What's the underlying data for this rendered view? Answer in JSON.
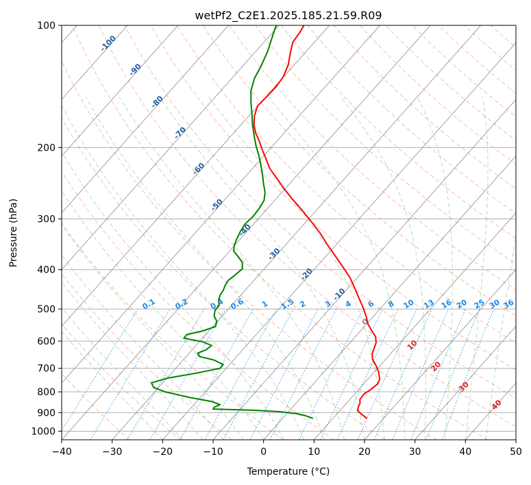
{
  "chart_data": {
    "type": "line",
    "title": "wetPf2_C2E1.2025.185.21.59.R09",
    "xlabel": "Temperature (°C)",
    "ylabel": "Pressure (hPa)",
    "xlim": [
      -40,
      50
    ],
    "ylim": [
      1050,
      100
    ],
    "y_scale": "log",
    "grid": true,
    "x_ticks": [
      -40,
      -30,
      -20,
      -10,
      0,
      10,
      20,
      30,
      40,
      50
    ],
    "y_ticks": [
      100,
      200,
      300,
      400,
      500,
      600,
      700,
      800,
      900,
      1000
    ],
    "colors": {
      "temperature": "#ff0000",
      "dewpoint": "#008000",
      "isotherm_label": "#1f5fa0",
      "mixing_ratio": "#1e88e5",
      "dry_adiabat": "#fa8060",
      "moist_adiabat": "#7cbf7c",
      "moist_label": "#d62728"
    },
    "isotherm_labels": [
      {
        "text": "-100",
        "t": -100,
        "p": 112
      },
      {
        "text": "-90",
        "t": -90,
        "p": 130
      },
      {
        "text": "-80",
        "t": -80,
        "p": 156
      },
      {
        "text": "-70",
        "t": -70,
        "p": 186
      },
      {
        "text": "-60",
        "t": -60,
        "p": 228
      },
      {
        "text": "-50",
        "t": -50,
        "p": 280
      },
      {
        "text": "-40",
        "t": -40,
        "p": 323
      },
      {
        "text": "-30",
        "t": -30,
        "p": 370
      },
      {
        "text": "-20",
        "t": -20,
        "p": 415
      },
      {
        "text": "-10",
        "t": -10,
        "p": 465
      },
      {
        "text": "0",
        "t": 0,
        "p": 543
      }
    ],
    "mixing_ratio_labels": [
      "0.1",
      "0.2",
      "0.4",
      "0.6",
      "1",
      "1.5",
      "2",
      "3",
      "4",
      "6",
      "8",
      "10",
      "13",
      "16",
      "20",
      "25",
      "30",
      "36"
    ],
    "mixing_ratio_label_x": [
      -22.5,
      -16,
      -9,
      -5,
      0.5,
      5,
      8,
      13,
      17,
      21.5,
      25.5,
      29,
      33,
      36.5,
      39.5,
      43,
      46,
      48.8
    ],
    "moist_adiabat_labels": [
      {
        "text": "10",
        "x": 29.8,
        "p": 620
      },
      {
        "text": "20",
        "x": 34.5,
        "p": 700
      },
      {
        "text": "30",
        "x": 40,
        "p": 785
      },
      {
        "text": "40",
        "x": 46.5,
        "p": 870
      }
    ],
    "series": [
      {
        "name": "temperature",
        "points": [
          [
            20.5,
            930
          ],
          [
            19.5,
            910
          ],
          [
            18.6,
            890
          ],
          [
            18.8,
            870
          ],
          [
            19.1,
            855
          ],
          [
            19.1,
            835
          ],
          [
            19.9,
            810
          ],
          [
            21.2,
            790
          ],
          [
            22.6,
            765
          ],
          [
            23.0,
            745
          ],
          [
            22.8,
            715
          ],
          [
            22.3,
            690
          ],
          [
            21.6,
            665
          ],
          [
            21.5,
            645
          ],
          [
            21.9,
            625
          ],
          [
            22.3,
            605
          ],
          [
            22.2,
            585
          ],
          [
            21.4,
            565
          ],
          [
            20.7,
            545
          ],
          [
            20.3,
            520
          ],
          [
            19.7,
            495
          ],
          [
            18.9,
            470
          ],
          [
            18.1,
            445
          ],
          [
            17.1,
            418
          ],
          [
            15.6,
            392
          ],
          [
            14.2,
            370
          ],
          [
            12.7,
            348
          ],
          [
            11.2,
            325
          ],
          [
            9.5,
            305
          ],
          [
            7.6,
            285
          ],
          [
            5.7,
            268
          ],
          [
            4.0,
            252
          ],
          [
            2.6,
            238
          ],
          [
            1.2,
            225
          ],
          [
            0.4,
            212
          ],
          [
            -0.3,
            202
          ],
          [
            -0.9,
            192
          ],
          [
            -1.6,
            184
          ],
          [
            -1.9,
            175
          ],
          [
            -1.8,
            167
          ],
          [
            -1.2,
            158
          ],
          [
            0.6,
            150
          ],
          [
            2.4,
            142
          ],
          [
            3.9,
            134
          ],
          [
            4.9,
            125
          ],
          [
            5.3,
            117
          ],
          [
            5.8,
            110
          ],
          [
            7.2,
            104
          ],
          [
            8.0,
            100
          ]
        ]
      },
      {
        "name": "dewpoint",
        "points": [
          [
            9.8,
            930
          ],
          [
            8.2,
            915
          ],
          [
            6.5,
            905
          ],
          [
            3.0,
            895
          ],
          [
            -2.0,
            888
          ],
          [
            -10.0,
            882
          ],
          [
            -9.8,
            873
          ],
          [
            -8.6,
            860
          ],
          [
            -10.3,
            845
          ],
          [
            -14.8,
            825
          ],
          [
            -19.5,
            800
          ],
          [
            -21.8,
            780
          ],
          [
            -22.2,
            760
          ],
          [
            -19.0,
            740
          ],
          [
            -13.5,
            720
          ],
          [
            -8.6,
            700
          ],
          [
            -8.0,
            685
          ],
          [
            -9.8,
            668
          ],
          [
            -12.6,
            655
          ],
          [
            -13.1,
            643
          ],
          [
            -11.4,
            630
          ],
          [
            -10.3,
            615
          ],
          [
            -12.1,
            602
          ],
          [
            -15.8,
            590
          ],
          [
            -15.2,
            578
          ],
          [
            -12.0,
            566
          ],
          [
            -9.5,
            552
          ],
          [
            -9.3,
            535
          ],
          [
            -9.8,
            520
          ],
          [
            -9.6,
            503
          ],
          [
            -8.8,
            490
          ],
          [
            -8.9,
            475
          ],
          [
            -8.6,
            462
          ],
          [
            -8.0,
            450
          ],
          [
            -7.6,
            437
          ],
          [
            -7.0,
            425
          ],
          [
            -5.6,
            412
          ],
          [
            -4.2,
            398
          ],
          [
            -4.2,
            384
          ],
          [
            -5.0,
            372
          ],
          [
            -5.9,
            360
          ],
          [
            -5.8,
            348
          ],
          [
            -5.3,
            336
          ],
          [
            -4.6,
            322
          ],
          [
            -3.6,
            308
          ],
          [
            -2.0,
            295
          ],
          [
            -0.9,
            283
          ],
          [
            0.1,
            270
          ],
          [
            0.3,
            258
          ],
          [
            0.0,
            246
          ],
          [
            -0.2,
            234
          ],
          [
            -0.5,
            222
          ],
          [
            -0.9,
            210
          ],
          [
            -1.5,
            198
          ],
          [
            -1.9,
            186
          ],
          [
            -2.2,
            175
          ],
          [
            -2.3,
            165
          ],
          [
            -2.5,
            155
          ],
          [
            -2.5,
            145
          ],
          [
            -1.8,
            135
          ],
          [
            -0.5,
            126
          ],
          [
            0.8,
            116
          ],
          [
            1.6,
            108
          ],
          [
            2.5,
            100
          ]
        ]
      }
    ]
  }
}
